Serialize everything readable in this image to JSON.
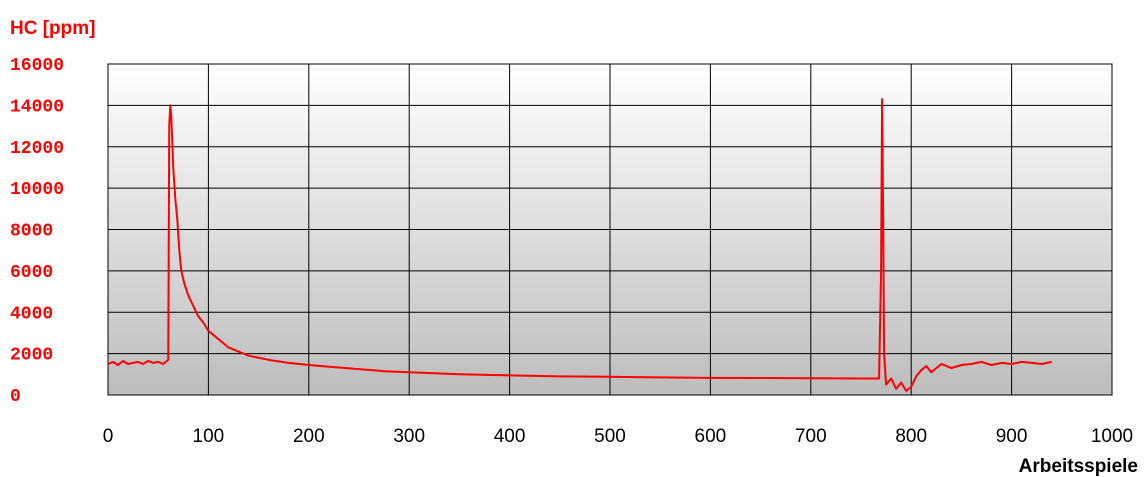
{
  "chart_data": {
    "type": "line",
    "title": "",
    "ylabel": "HC [ppm]",
    "xlabel": "Arbeitsspiele",
    "xlim": [
      0,
      1000
    ],
    "ylim": [
      0,
      16000
    ],
    "xticks": [
      0,
      100,
      200,
      300,
      400,
      500,
      600,
      700,
      800,
      900,
      1000
    ],
    "yticks": [
      0,
      2000,
      4000,
      6000,
      8000,
      10000,
      12000,
      14000,
      16000
    ],
    "grid": true,
    "legend": "none",
    "colors": {
      "series": "#ff0000",
      "axis_text": "#ff0000",
      "grid": "#000000"
    },
    "series": [
      {
        "points": [
          [
            0,
            1500
          ],
          [
            5,
            1600
          ],
          [
            10,
            1450
          ],
          [
            15,
            1650
          ],
          [
            20,
            1500
          ],
          [
            25,
            1550
          ],
          [
            30,
            1600
          ],
          [
            35,
            1500
          ],
          [
            40,
            1650
          ],
          [
            45,
            1550
          ],
          [
            50,
            1600
          ],
          [
            55,
            1500
          ],
          [
            60,
            1700
          ],
          [
            61,
            13000
          ],
          [
            62,
            14000
          ],
          [
            63,
            13500
          ],
          [
            65,
            11000
          ],
          [
            67,
            9500
          ],
          [
            69,
            8500
          ],
          [
            71,
            7000
          ],
          [
            73,
            6000
          ],
          [
            76,
            5400
          ],
          [
            80,
            4800
          ],
          [
            85,
            4300
          ],
          [
            90,
            3800
          ],
          [
            95,
            3500
          ],
          [
            100,
            3100
          ],
          [
            110,
            2700
          ],
          [
            120,
            2300
          ],
          [
            130,
            2100
          ],
          [
            140,
            1900
          ],
          [
            160,
            1700
          ],
          [
            180,
            1550
          ],
          [
            200,
            1450
          ],
          [
            225,
            1350
          ],
          [
            250,
            1250
          ],
          [
            275,
            1150
          ],
          [
            300,
            1100
          ],
          [
            350,
            1000
          ],
          [
            400,
            950
          ],
          [
            450,
            900
          ],
          [
            500,
            880
          ],
          [
            550,
            850
          ],
          [
            600,
            830
          ],
          [
            650,
            820
          ],
          [
            700,
            810
          ],
          [
            750,
            800
          ],
          [
            768,
            800
          ],
          [
            770,
            6000
          ],
          [
            771,
            14300
          ],
          [
            772,
            9000
          ],
          [
            773,
            2000
          ],
          [
            775,
            500
          ],
          [
            780,
            800
          ],
          [
            785,
            300
          ],
          [
            790,
            600
          ],
          [
            795,
            200
          ],
          [
            800,
            400
          ],
          [
            805,
            900
          ],
          [
            810,
            1200
          ],
          [
            815,
            1400
          ],
          [
            820,
            1100
          ],
          [
            830,
            1500
          ],
          [
            840,
            1300
          ],
          [
            850,
            1450
          ],
          [
            860,
            1500
          ],
          [
            870,
            1600
          ],
          [
            880,
            1450
          ],
          [
            890,
            1550
          ],
          [
            900,
            1500
          ],
          [
            910,
            1600
          ],
          [
            920,
            1550
          ],
          [
            930,
            1500
          ],
          [
            940,
            1600
          ]
        ]
      }
    ]
  }
}
